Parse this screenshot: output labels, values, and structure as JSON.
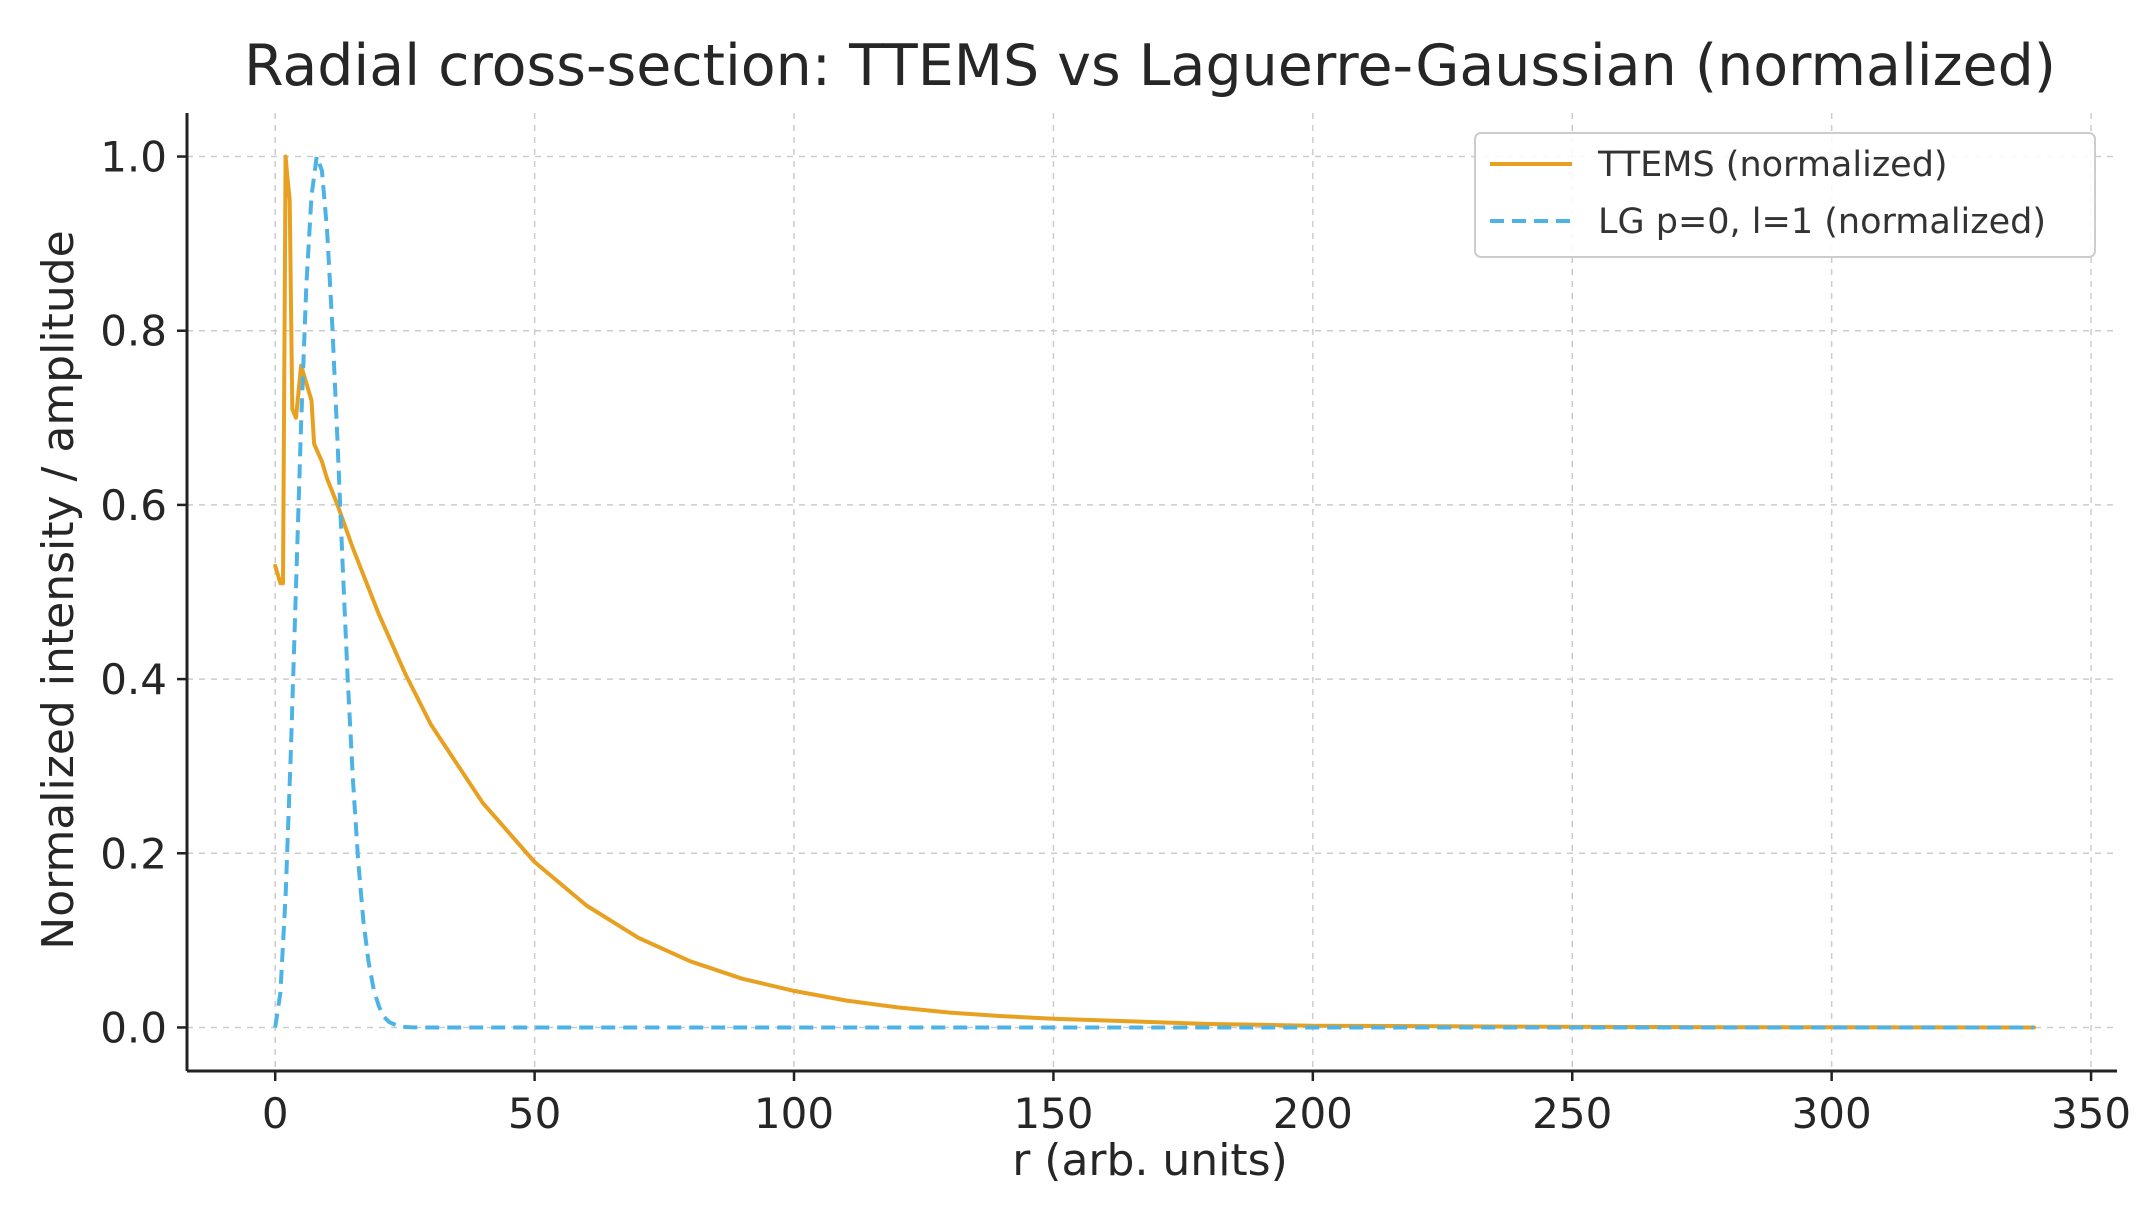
{
  "chart_data": {
    "type": "line",
    "title": "Radial cross-section: TTEMS vs Laguerre-Gaussian (normalized)",
    "xlabel": "r (arb. units)",
    "ylabel": "Normalized intensity / amplitude",
    "xlim": [
      -17,
      355
    ],
    "ylim": [
      -0.05,
      1.05
    ],
    "xticks": [
      0,
      50,
      100,
      150,
      200,
      250,
      300,
      350
    ],
    "xtick_labels": [
      "0",
      "50",
      "100",
      "150",
      "200",
      "250",
      "300",
      "350"
    ],
    "yticks": [
      0.0,
      0.2,
      0.4,
      0.6,
      0.8,
      1.0
    ],
    "ytick_labels": [
      "0.0",
      "0.2",
      "0.4",
      "0.6",
      "0.8",
      "1.0"
    ],
    "grid": true,
    "legend_position": "top-right",
    "series": [
      {
        "name": "TTEMS (normalized)",
        "color": "#E8A020",
        "style": "solid",
        "x": [
          0,
          0.5,
          1.0,
          1.5,
          2.0,
          2.3,
          2.8,
          3.3,
          4.0,
          5.0,
          6.0,
          7.0,
          7.5,
          9,
          10,
          12,
          15,
          20,
          25,
          30,
          40,
          50,
          60,
          70,
          80,
          90,
          100,
          110,
          120,
          130,
          140,
          150,
          160,
          170,
          180,
          190,
          200,
          220,
          240,
          260,
          280,
          300,
          320,
          339
        ],
        "y": [
          0.53,
          0.52,
          0.51,
          0.51,
          1.0,
          0.98,
          0.95,
          0.71,
          0.7,
          0.76,
          0.74,
          0.72,
          0.67,
          0.65,
          0.63,
          0.6,
          0.55,
          0.474,
          0.407,
          0.348,
          0.258,
          0.19,
          0.14,
          0.103,
          0.076,
          0.056,
          0.042,
          0.031,
          0.023,
          0.017,
          0.013,
          0.01,
          0.008,
          0.006,
          0.004,
          0.003,
          0.002,
          0.0015,
          0.001,
          0.0005,
          0.0003,
          0.0002,
          0.0001,
          0.0
        ]
      },
      {
        "name": "LG p=0, l=1 (normalized)",
        "color": "#4DB3E6",
        "style": "dashed",
        "x": [
          0,
          1,
          2,
          3,
          4,
          5,
          6,
          7,
          8,
          9,
          10,
          11,
          12,
          13,
          14,
          15,
          16,
          17,
          18,
          19,
          20,
          21,
          22,
          24,
          26,
          30,
          40,
          60,
          100,
          150,
          200,
          250,
          300,
          339
        ],
        "y": [
          0.0,
          0.04,
          0.151,
          0.315,
          0.506,
          0.693,
          0.851,
          0.955,
          1.0,
          0.984,
          0.915,
          0.806,
          0.673,
          0.532,
          0.398,
          0.283,
          0.191,
          0.122,
          0.075,
          0.043,
          0.024,
          0.012,
          0.006,
          0.001,
          0.0002,
          0.0,
          0.0,
          0.0,
          0.0,
          0.0,
          0.0,
          0.0,
          0.0,
          0.0
        ]
      }
    ]
  }
}
